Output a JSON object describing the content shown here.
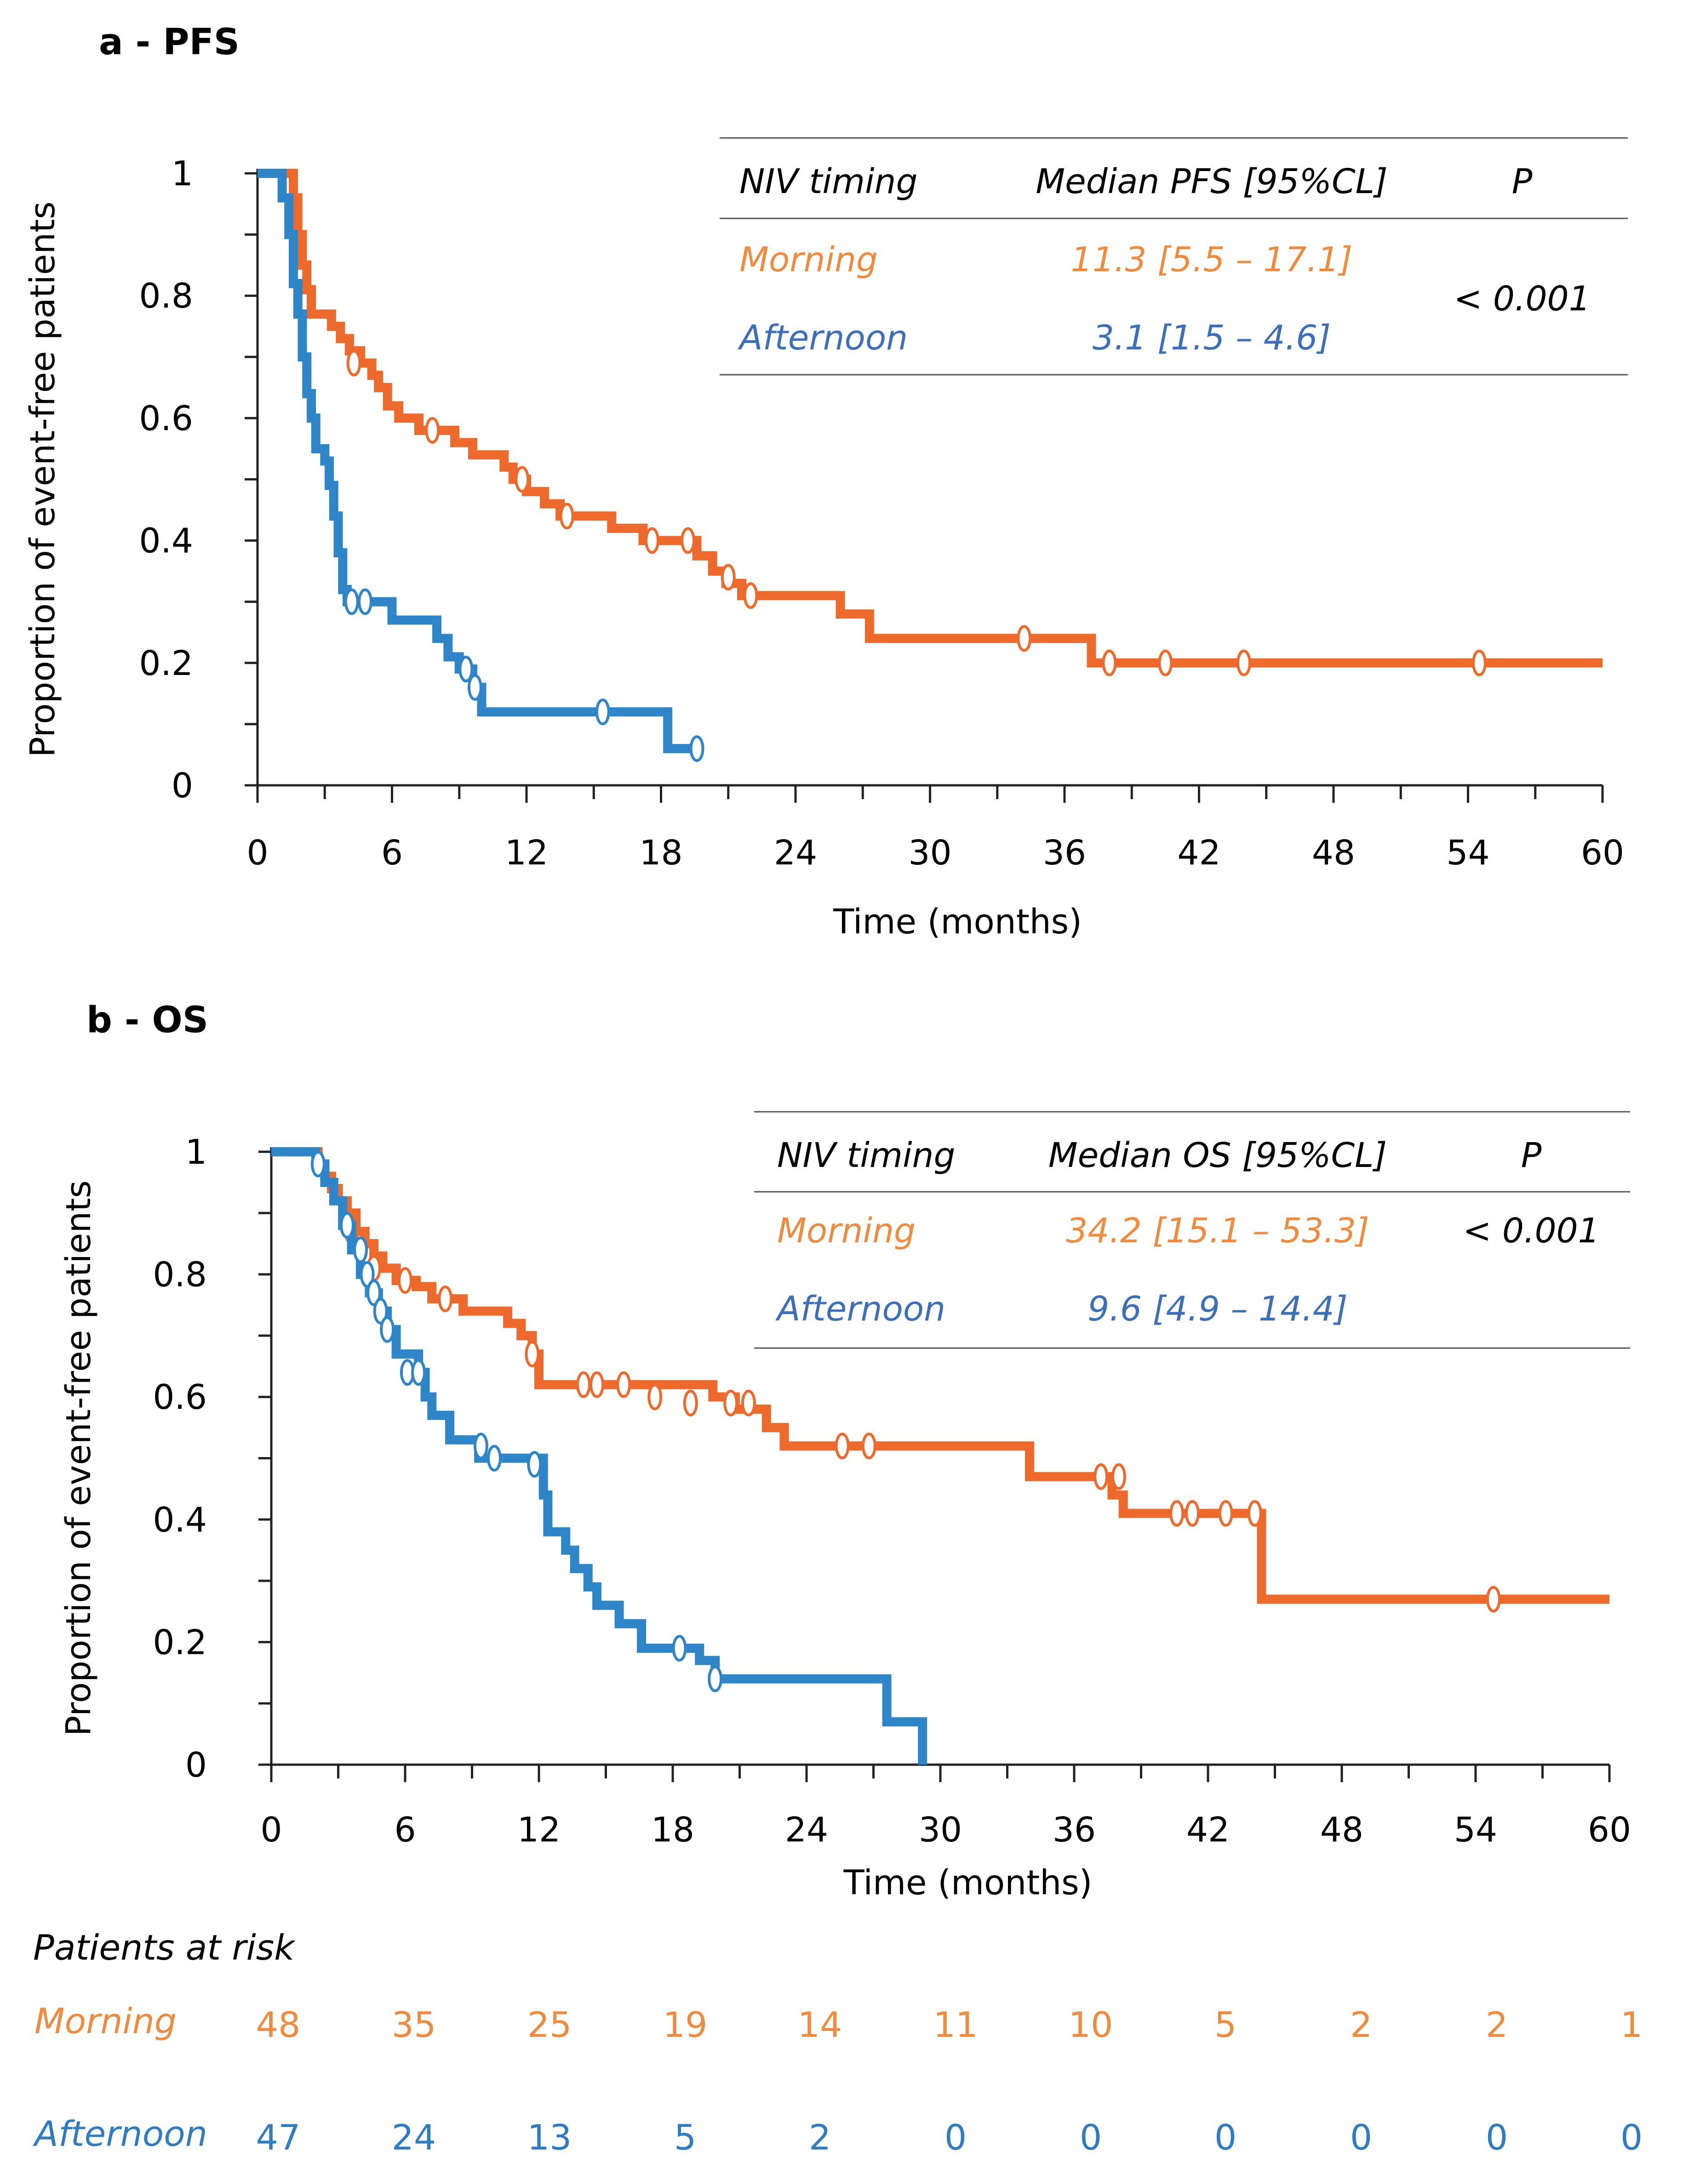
{
  "colors": {
    "morning": "#EE6A2C",
    "afternoon": "#2E86C8",
    "table_morning": "#EF8B3E",
    "table_afternoon": "#3C6FB8"
  },
  "chart_data": [
    {
      "type": "line",
      "title": "a - PFS",
      "xlabel": "Time (months)",
      "ylabel": "Proportion of event-free patients",
      "xlim": [
        0,
        60
      ],
      "ylim": [
        0,
        1
      ],
      "x_ticks": [
        "0",
        "6",
        "12",
        "18",
        "24",
        "30",
        "36",
        "42",
        "48",
        "54",
        "60"
      ],
      "y_ticks": [
        "0",
        "0.2",
        "0.4",
        "0.6",
        "0.8",
        "1"
      ],
      "table": {
        "header": [
          "NIV timing",
          "Median PFS [95%CL]",
          "P"
        ],
        "rows": [
          {
            "group": "Morning",
            "median": "11.3 [5.5 – 17.1]"
          },
          {
            "group": "Afternoon",
            "median": "3.1 [1.5 – 4.6]"
          }
        ],
        "p_value": "< 0.001"
      },
      "series": [
        {
          "name": "Morning",
          "steps": [
            [
              0,
              1
            ],
            [
              1.6,
              0.96
            ],
            [
              1.8,
              0.9
            ],
            [
              2.0,
              0.85
            ],
            [
              2.2,
              0.81
            ],
            [
              2.4,
              0.77
            ],
            [
              3.3,
              0.75
            ],
            [
              3.7,
              0.73
            ],
            [
              4.1,
              0.71
            ],
            [
              4.6,
              0.69
            ],
            [
              5.1,
              0.67
            ],
            [
              5.4,
              0.65
            ],
            [
              5.8,
              0.62
            ],
            [
              6.3,
              0.6
            ],
            [
              7.2,
              0.58
            ],
            [
              8.8,
              0.56
            ],
            [
              9.6,
              0.54
            ],
            [
              11.0,
              0.52
            ],
            [
              11.4,
              0.5
            ],
            [
              12.0,
              0.48
            ],
            [
              12.8,
              0.46
            ],
            [
              13.5,
              0.44
            ],
            [
              15.8,
              0.42
            ],
            [
              17.2,
              0.4
            ],
            [
              19.6,
              0.375
            ],
            [
              20.3,
              0.35
            ],
            [
              20.9,
              0.33
            ],
            [
              21.6,
              0.31
            ],
            [
              26.0,
              0.28
            ],
            [
              27.3,
              0.24
            ],
            [
              37.2,
              0.2
            ]
          ],
          "end_x": 60,
          "censors": [
            [
              4.3,
              0.69
            ],
            [
              7.8,
              0.58
            ],
            [
              11.8,
              0.5
            ],
            [
              13.8,
              0.44
            ],
            [
              17.6,
              0.4
            ],
            [
              19.2,
              0.4
            ],
            [
              21.0,
              0.34
            ],
            [
              22.0,
              0.31
            ],
            [
              34.2,
              0.24
            ],
            [
              38.0,
              0.2
            ],
            [
              40.5,
              0.2
            ],
            [
              44.0,
              0.2
            ],
            [
              54.5,
              0.2
            ]
          ]
        },
        {
          "name": "Afternoon",
          "steps": [
            [
              0,
              1
            ],
            [
              1.1,
              0.96
            ],
            [
              1.4,
              0.9
            ],
            [
              1.6,
              0.82
            ],
            [
              1.8,
              0.77
            ],
            [
              2.0,
              0.7
            ],
            [
              2.2,
              0.64
            ],
            [
              2.4,
              0.6
            ],
            [
              2.6,
              0.55
            ],
            [
              3.0,
              0.53
            ],
            [
              3.2,
              0.49
            ],
            [
              3.4,
              0.44
            ],
            [
              3.6,
              0.38
            ],
            [
              3.8,
              0.32
            ],
            [
              4.0,
              0.3
            ],
            [
              6.0,
              0.27
            ],
            [
              8.0,
              0.24
            ],
            [
              8.5,
              0.21
            ],
            [
              9.0,
              0.19
            ],
            [
              9.6,
              0.16
            ],
            [
              10.0,
              0.12
            ],
            [
              18.3,
              0.06
            ]
          ],
          "end_x": 19.6,
          "censors": [
            [
              4.2,
              0.3
            ],
            [
              4.8,
              0.3
            ],
            [
              9.3,
              0.19
            ],
            [
              9.7,
              0.16
            ],
            [
              15.4,
              0.12
            ],
            [
              19.6,
              0.06
            ]
          ]
        }
      ]
    },
    {
      "type": "line",
      "title": "b - OS",
      "xlabel": "Time (months)",
      "ylabel": "Proportion of event-free patients",
      "xlim": [
        0,
        60
      ],
      "ylim": [
        0,
        1
      ],
      "x_ticks": [
        "0",
        "6",
        "12",
        "18",
        "24",
        "30",
        "36",
        "42",
        "48",
        "54",
        "60"
      ],
      "y_ticks": [
        "0",
        "0.2",
        "0.4",
        "0.6",
        "0.8",
        "1"
      ],
      "table": {
        "header": [
          "NIV timing",
          "Median OS [95%CL]",
          "P"
        ],
        "rows": [
          {
            "group": "Morning",
            "median": "34.2 [15.1 – 53.3]"
          },
          {
            "group": "Afternoon",
            "median": "9.6 [4.9 – 14.4]"
          }
        ],
        "p_value": "< 0.001"
      },
      "series": [
        {
          "name": "Morning",
          "steps": [
            [
              0,
              1
            ],
            [
              2.1,
              0.98
            ],
            [
              2.4,
              0.96
            ],
            [
              2.7,
              0.94
            ],
            [
              3.0,
              0.92
            ],
            [
              3.4,
              0.9
            ],
            [
              3.8,
              0.87
            ],
            [
              4.2,
              0.85
            ],
            [
              4.6,
              0.83
            ],
            [
              5.0,
              0.81
            ],
            [
              5.6,
              0.79
            ],
            [
              6.5,
              0.78
            ],
            [
              7.2,
              0.76
            ],
            [
              8.6,
              0.74
            ],
            [
              10.6,
              0.72
            ],
            [
              11.2,
              0.7
            ],
            [
              11.7,
              0.67
            ],
            [
              12.0,
              0.62
            ],
            [
              19.8,
              0.6
            ],
            [
              20.8,
              0.58
            ],
            [
              22.2,
              0.55
            ],
            [
              23.0,
              0.52
            ],
            [
              25.8,
              0.52
            ],
            [
              34.0,
              0.47
            ],
            [
              37.7,
              0.44
            ],
            [
              38.2,
              0.41
            ],
            [
              44.4,
              0.27
            ]
          ],
          "end_x": 60,
          "censors": [
            [
              3.6,
              0.87
            ],
            [
              4.6,
              0.81
            ],
            [
              6.0,
              0.79
            ],
            [
              7.8,
              0.76
            ],
            [
              11.7,
              0.67
            ],
            [
              14.0,
              0.62
            ],
            [
              14.6,
              0.62
            ],
            [
              15.8,
              0.62
            ],
            [
              17.2,
              0.6
            ],
            [
              18.8,
              0.59
            ],
            [
              20.6,
              0.59
            ],
            [
              21.4,
              0.59
            ],
            [
              25.6,
              0.52
            ],
            [
              26.8,
              0.52
            ],
            [
              37.2,
              0.47
            ],
            [
              38.0,
              0.47
            ],
            [
              40.6,
              0.41
            ],
            [
              41.3,
              0.41
            ],
            [
              42.8,
              0.41
            ],
            [
              44.1,
              0.41
            ],
            [
              54.8,
              0.27
            ]
          ]
        },
        {
          "name": "Afternoon",
          "steps": [
            [
              0,
              1
            ],
            [
              2.0,
              0.98
            ],
            [
              2.4,
              0.95
            ],
            [
              2.8,
              0.92
            ],
            [
              3.2,
              0.88
            ],
            [
              3.6,
              0.84
            ],
            [
              4.0,
              0.8
            ],
            [
              4.4,
              0.77
            ],
            [
              4.8,
              0.74
            ],
            [
              5.2,
              0.71
            ],
            [
              5.6,
              0.67
            ],
            [
              6.6,
              0.64
            ],
            [
              6.9,
              0.6
            ],
            [
              7.2,
              0.57
            ],
            [
              8.0,
              0.53
            ],
            [
              9.3,
              0.5
            ],
            [
              12.2,
              0.44
            ],
            [
              12.4,
              0.38
            ],
            [
              13.2,
              0.35
            ],
            [
              13.6,
              0.32
            ],
            [
              14.2,
              0.29
            ],
            [
              14.6,
              0.26
            ],
            [
              15.6,
              0.23
            ],
            [
              16.6,
              0.19
            ],
            [
              19.2,
              0.17
            ],
            [
              19.9,
              0.14
            ],
            [
              27.6,
              0.07
            ],
            [
              29.2,
              0
            ]
          ],
          "end_x": 29.2,
          "censors": [
            [
              2.1,
              0.98
            ],
            [
              3.4,
              0.88
            ],
            [
              4.0,
              0.84
            ],
            [
              4.3,
              0.8
            ],
            [
              4.6,
              0.77
            ],
            [
              4.9,
              0.74
            ],
            [
              5.2,
              0.71
            ],
            [
              6.1,
              0.64
            ],
            [
              6.6,
              0.64
            ],
            [
              9.4,
              0.52
            ],
            [
              10.0,
              0.5
            ],
            [
              11.8,
              0.49
            ],
            [
              18.3,
              0.19
            ],
            [
              19.9,
              0.14
            ]
          ]
        }
      ]
    }
  ],
  "patients_at_risk": {
    "title": "Patients at risk",
    "rows": [
      {
        "label": "Morning",
        "values": [
          "48",
          "35",
          "25",
          "19",
          "14",
          "11",
          "10",
          "5",
          "2",
          "2",
          "1"
        ]
      },
      {
        "label": "Afternoon",
        "values": [
          "47",
          "24",
          "13",
          "5",
          "2",
          "0",
          "0",
          "0",
          "0",
          "0",
          "0"
        ]
      }
    ]
  }
}
